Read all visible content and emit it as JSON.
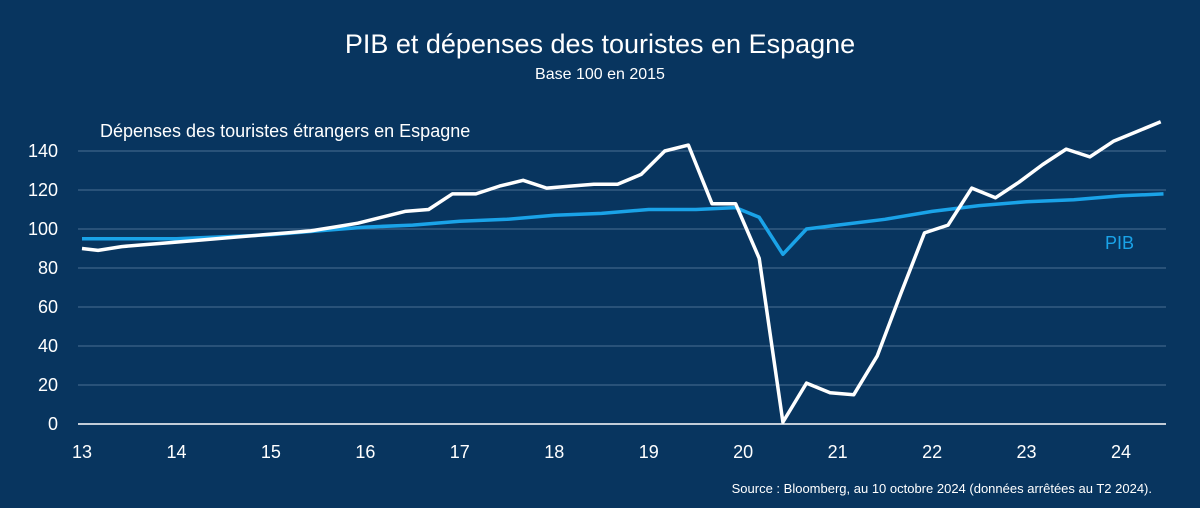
{
  "colors": {
    "background": "#08355f",
    "tourism_line": "#ffffff",
    "gdp_line": "#1aa3e8",
    "grid": "#4a6f93"
  },
  "chart_data": {
    "type": "line",
    "title": "PIB et dépenses des touristes en Espagne",
    "subtitle": "Base 100 en 2015",
    "source": "Source : Bloomberg, au 10 octobre 2024 (données arrêtées au T2 2024).",
    "x_ticks": [
      "13",
      "14",
      "15",
      "16",
      "17",
      "18",
      "19",
      "20",
      "21",
      "22",
      "23",
      "24"
    ],
    "xlim": [
      2013,
      2024.5
    ],
    "ylim": [
      0,
      140
    ],
    "y_ticks": [
      0,
      20,
      40,
      60,
      80,
      100,
      120,
      140
    ],
    "grid": true,
    "series": [
      {
        "name": "Dépenses des touristes étrangers en Espagne",
        "color": "#ffffff",
        "x": [
          2013.0,
          2013.17,
          2013.42,
          2013.67,
          2013.92,
          2014.17,
          2014.42,
          2014.67,
          2014.92,
          2015.17,
          2015.42,
          2015.67,
          2015.92,
          2016.17,
          2016.42,
          2016.67,
          2016.92,
          2017.17,
          2017.42,
          2017.67,
          2017.92,
          2018.17,
          2018.42,
          2018.67,
          2018.92,
          2019.17,
          2019.42,
          2019.67,
          2019.92,
          2020.17,
          2020.42,
          2020.67,
          2020.92,
          2021.17,
          2021.42,
          2021.67,
          2021.92,
          2022.17,
          2022.42,
          2022.67,
          2022.92,
          2023.17,
          2023.42,
          2023.67,
          2023.92,
          2024.17,
          2024.42
        ],
        "values": [
          90,
          89,
          91,
          92,
          93,
          94,
          95,
          96,
          97,
          98,
          99,
          101,
          103,
          106,
          109,
          110,
          118,
          118,
          122,
          125,
          121,
          122,
          123,
          123,
          128,
          140,
          143,
          113,
          113,
          85,
          1,
          21,
          16,
          15,
          35,
          67,
          98,
          102,
          121,
          116,
          124,
          133,
          141,
          137,
          145,
          150,
          155
        ]
      },
      {
        "name": "PIB",
        "color": "#1aa3e8",
        "x": [
          2013.0,
          2013.5,
          2014.0,
          2014.5,
          2015.0,
          2015.5,
          2016.0,
          2016.5,
          2017.0,
          2017.5,
          2018.0,
          2018.5,
          2019.0,
          2019.5,
          2019.92,
          2020.17,
          2020.42,
          2020.67,
          2021.0,
          2021.5,
          2022.0,
          2022.5,
          2023.0,
          2023.5,
          2024.0,
          2024.45
        ],
        "values": [
          95,
          95,
          95,
          96,
          97,
          99,
          101,
          102,
          104,
          105,
          107,
          108,
          110,
          110,
          111,
          106,
          87,
          100,
          102,
          105,
          109,
          112,
          114,
          115,
          117,
          118
        ]
      }
    ]
  }
}
